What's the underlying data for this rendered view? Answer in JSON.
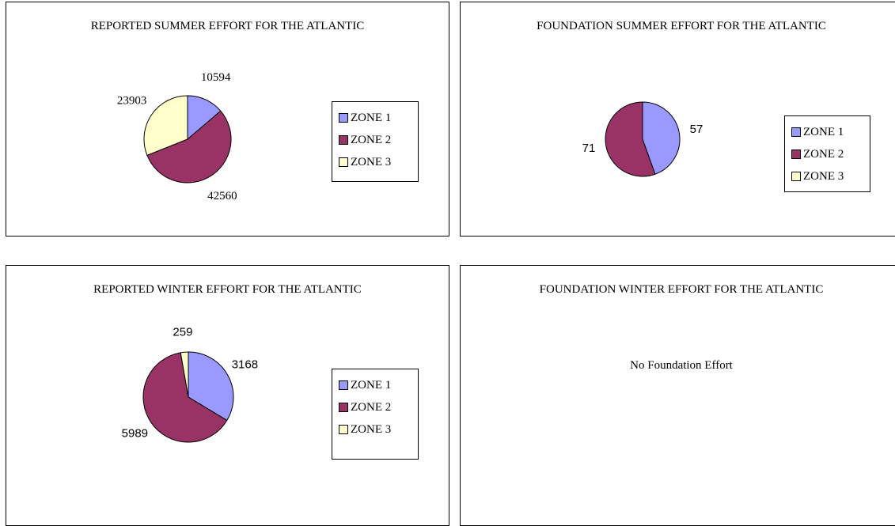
{
  "chart_data": [
    {
      "type": "pie",
      "title": "REPORTED SUMMER EFFORT FOR THE ATLANTIC",
      "categories": [
        "ZONE 1",
        "ZONE 2",
        "ZONE 3"
      ],
      "values": [
        10594,
        42560,
        23903
      ],
      "colors": [
        "#9999ff",
        "#993366",
        "#ffffcc"
      ],
      "legend": "right"
    },
    {
      "type": "pie",
      "title": "FOUNDATION SUMMER EFFORT FOR THE ATLANTIC",
      "categories": [
        "ZONE 1",
        "ZONE 2",
        "ZONE 3"
      ],
      "values": [
        57,
        71,
        null
      ],
      "colors": [
        "#9999ff",
        "#993366",
        "#ffffcc"
      ],
      "legend": "right"
    },
    {
      "type": "pie",
      "title": "REPORTED WINTER EFFORT FOR THE ATLANTIC",
      "categories": [
        "ZONE 1",
        "ZONE 2",
        "ZONE 3"
      ],
      "values": [
        3168,
        5989,
        259
      ],
      "colors": [
        "#9999ff",
        "#993366",
        "#ffffcc"
      ],
      "legend": "right"
    },
    {
      "type": "text",
      "title": "FOUNDATION WINTER EFFORT FOR THE ATLANTIC",
      "note": "No Foundation Effort"
    }
  ]
}
